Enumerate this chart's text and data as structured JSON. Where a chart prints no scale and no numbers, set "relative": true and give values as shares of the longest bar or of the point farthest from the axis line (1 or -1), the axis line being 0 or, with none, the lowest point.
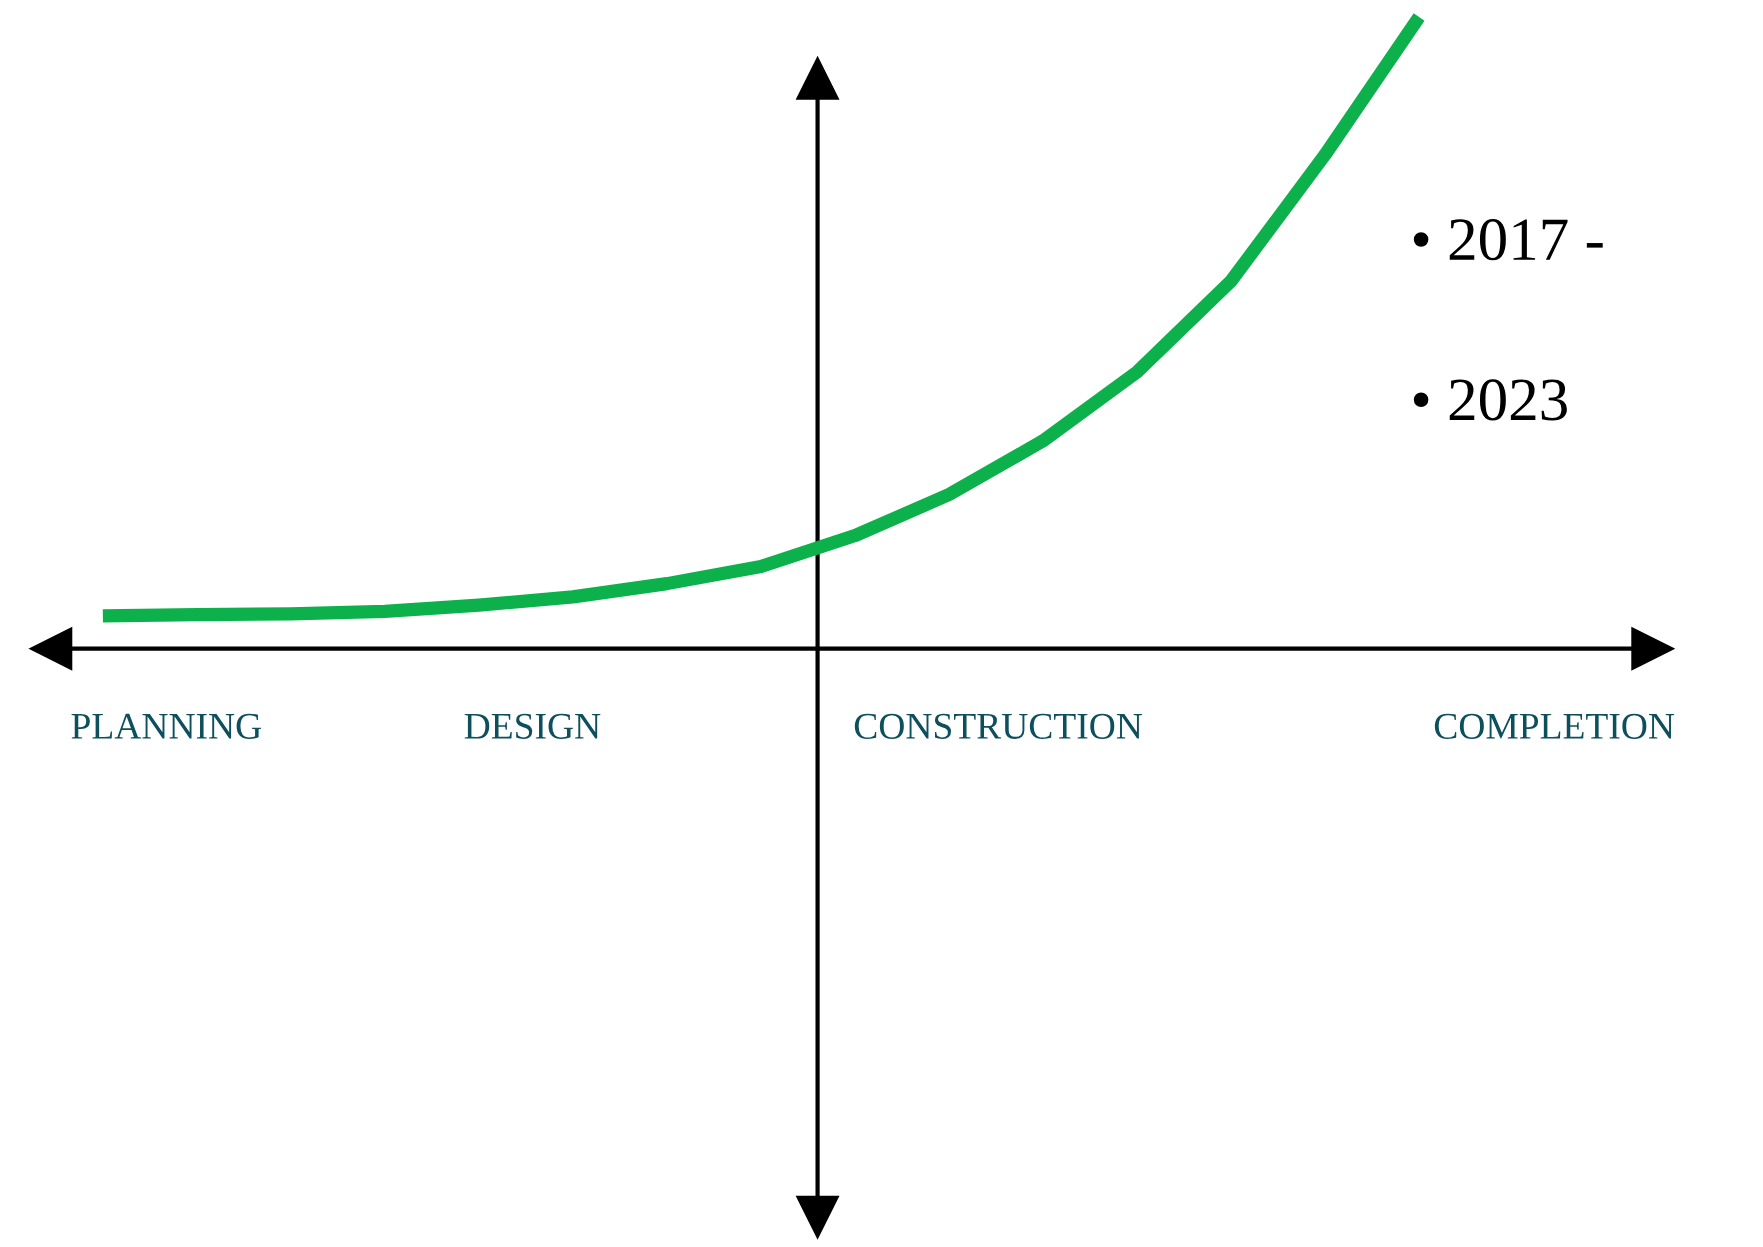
{
  "chart_data": {
    "type": "line",
    "relative": true,
    "categories": [
      null,
      null,
      null,
      null,
      null,
      null,
      null,
      null,
      null,
      null,
      null,
      null,
      null,
      null,
      null
    ],
    "series": [
      {
        "color": "#0db14b",
        "values": [
          0.052,
          0.054,
          0.055,
          0.059,
          0.069,
          0.082,
          0.103,
          0.13,
          0.179,
          0.244,
          0.329,
          0.438,
          0.582,
          0.782,
          1.0
        ]
      }
    ],
    "annotations": [
      "PLANNING",
      "DESIGN",
      "CONSTRUCTION",
      "COMPLETION",
      "• 2017 -",
      "• 2023"
    ]
  }
}
